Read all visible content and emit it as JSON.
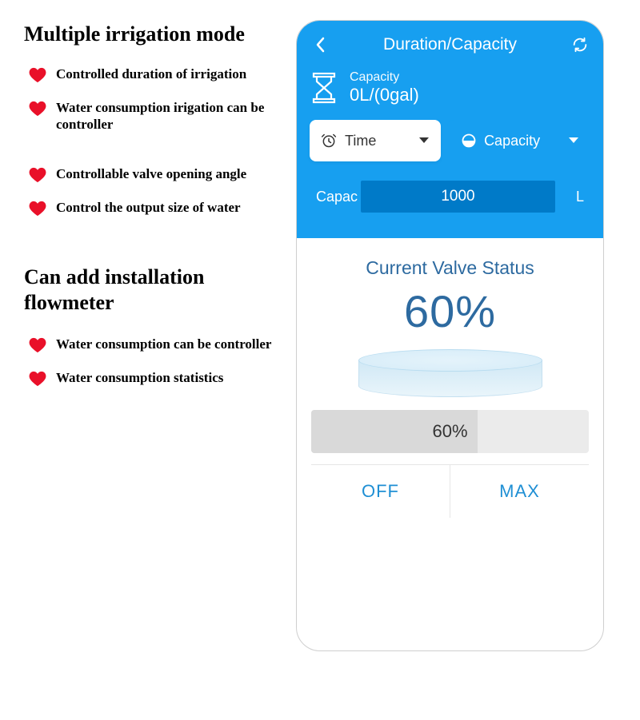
{
  "colors": {
    "heart": "#e91029",
    "primary_blue": "#179ff0",
    "deep_blue": "#007ac8",
    "text_blue": "#2d6aa0",
    "accent_blue": "#1f8fd4",
    "bar_bg": "#ebebeb",
    "bar_fill": "#d9d9d9"
  },
  "left": {
    "heading1": "Multiple irrigation mode",
    "bullets1": [
      "Controlled duration of irrigation",
      "Water consumption irigation can be controller",
      "Controllable valve opening angle",
      "Control the output size of water"
    ],
    "heading2": "Can add installation flowmeter",
    "bullets2": [
      "Water consumption can be controller",
      "Water consumption statistics"
    ]
  },
  "phone": {
    "header": {
      "title": "Duration/Capacity",
      "capacity_label": "Capacity",
      "capacity_value": "0L/(0gal)"
    },
    "tabs": {
      "time_label": "Time",
      "capacity_label": "Capacity"
    },
    "capacity_input": {
      "label": "Capac",
      "value": "1000",
      "unit": "L"
    },
    "valve": {
      "title": "Current Valve Status",
      "percent_text": "60%",
      "bar_percent_text": "60%",
      "fill_percent": 60
    },
    "buttons": {
      "off": "OFF",
      "max": "MAX"
    }
  }
}
